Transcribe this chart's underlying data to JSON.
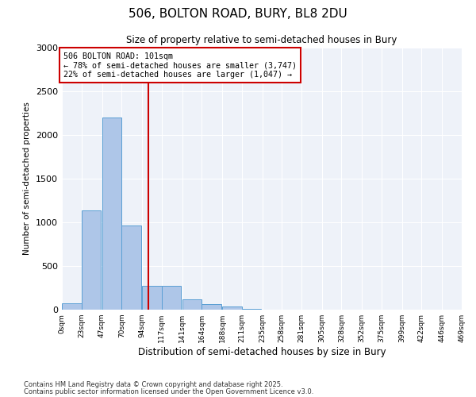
{
  "title_line1": "506, BOLTON ROAD, BURY, BL8 2DU",
  "title_line2": "Size of property relative to semi-detached houses in Bury",
  "xlabel": "Distribution of semi-detached houses by size in Bury",
  "ylabel": "Number of semi-detached properties",
  "footnote1": "Contains HM Land Registry data © Crown copyright and database right 2025.",
  "footnote2": "Contains public sector information licensed under the Open Government Licence v3.0.",
  "annotation_title": "506 BOLTON ROAD: 101sqm",
  "annotation_line2": "← 78% of semi-detached houses are smaller (3,747)",
  "annotation_line3": "22% of semi-detached houses are larger (1,047) →",
  "property_size": 101,
  "bin_width": 23,
  "bins": [
    0,
    23,
    47,
    70,
    94,
    117,
    141,
    164,
    188,
    211,
    235,
    258,
    281,
    305,
    328,
    352,
    375,
    399,
    422,
    446,
    469
  ],
  "bar_heights": [
    75,
    1140,
    2200,
    960,
    270,
    270,
    120,
    65,
    35,
    5,
    0,
    0,
    0,
    0,
    0,
    0,
    0,
    0,
    0,
    0
  ],
  "bar_color": "#aec6e8",
  "bar_edge_color": "#5a9fd4",
  "vline_color": "#cc0000",
  "vline_x": 101,
  "ylim": [
    0,
    3000
  ],
  "yticks": [
    0,
    500,
    1000,
    1500,
    2000,
    2500,
    3000
  ],
  "annotation_box_color": "#cc0000",
  "bg_color": "#eef2f9"
}
